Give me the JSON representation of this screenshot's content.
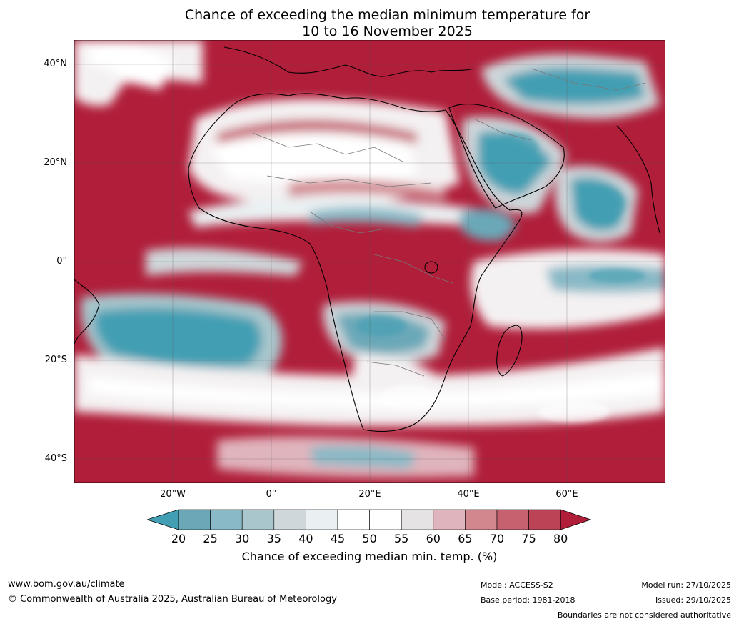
{
  "title": {
    "line1": "Chance of exceeding the median minimum temperature for",
    "line2": "10 to 16 November 2025"
  },
  "map": {
    "region": "Africa",
    "lat_labels": [
      "40°N",
      "20°N",
      "0°",
      "20°S",
      "40°S"
    ],
    "lon_labels": [
      "20°W",
      "0°",
      "20°E",
      "40°E",
      "60°E"
    ]
  },
  "colorbar": {
    "ticks": [
      "20",
      "25",
      "30",
      "35",
      "40",
      "45",
      "50",
      "55",
      "60",
      "65",
      "70",
      "75",
      "80"
    ],
    "colors": [
      "#6aa8b8",
      "#89b9c6",
      "#a9c6cc",
      "#cfd7da",
      "#eaf0f2",
      "#ffffff",
      "#ffffff",
      "#e6e3e5",
      "#e0b4bc",
      "#d2878f",
      "#c6626f",
      "#bb4356"
    ],
    "under_color": "#429fb3",
    "over_color": "#b01e3a",
    "label": "Chance of exceeding median min. temp. (%)"
  },
  "footer": {
    "website": "www.bom.gov.au/climate",
    "copyright": "© Commonwealth of Australia 2025, Australian Bureau of Meteorology",
    "model": "Model: ACCESS-S2",
    "base_period": "Base period: 1981-2018",
    "model_run": "Model run: 27/10/2025",
    "issued": "Issued: 29/10/2025",
    "disclaimer": "Boundaries are not considered authoritative"
  }
}
